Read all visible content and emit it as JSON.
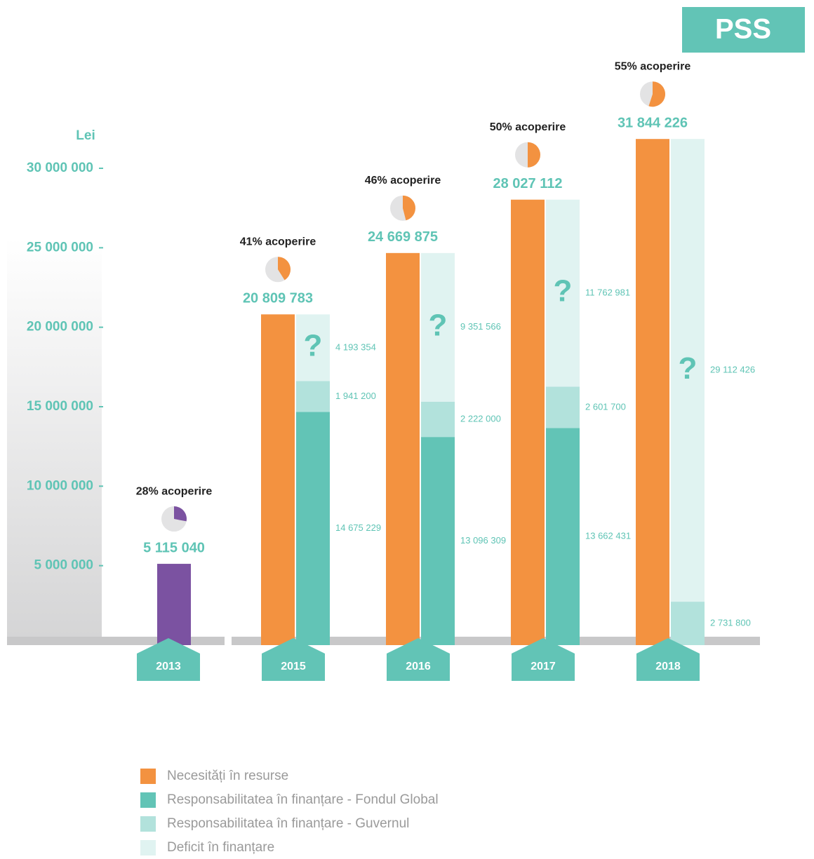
{
  "chart_data": {
    "type": "bar",
    "badge": "PSS",
    "y_label": "Lei",
    "categories": [
      "2013",
      "2015",
      "2016",
      "2017",
      "2018"
    ],
    "ylim": [
      0,
      30000000
    ],
    "yticks": [
      {
        "value": 5000000,
        "label": "5 000 000"
      },
      {
        "value": 10000000,
        "label": "10 000 000"
      },
      {
        "value": 15000000,
        "label": "15 000 000"
      },
      {
        "value": 20000000,
        "label": "20 000 000"
      },
      {
        "value": 25000000,
        "label": "25 000 000"
      },
      {
        "value": 30000000,
        "label": "30 000 000"
      }
    ],
    "coverage": [
      28,
      41,
      46,
      50,
      55
    ],
    "coverage_labels": [
      "28% acoperire",
      "41% acoperire",
      "46% acoperire",
      "50% acoperire",
      "55% acoperire"
    ],
    "deficit_mark": "?",
    "point_colors": [
      "#7b52a1",
      "#f39240",
      "#f39240",
      "#f39240",
      "#f39240"
    ],
    "series": [
      {
        "name": "Necesități în resurse",
        "color": "#f39240",
        "values": [
          5115040,
          20809783,
          24669875,
          28027112,
          31844226
        ],
        "value_labels": [
          "5  115 040",
          "20 809 783",
          "24 669 875",
          "28 027 112",
          "31 844 226"
        ]
      },
      {
        "name": "Responsabilitatea în finanțare - Fondul Global",
        "color": "#62c4b6",
        "values": [
          null,
          14675229,
          13096309,
          13662431,
          null
        ],
        "value_labels": [
          null,
          "14 675 229",
          "13 096 309",
          "13 662 431",
          null
        ]
      },
      {
        "name": "Responsabilitatea în finanțare - Guvernul",
        "color": "#b2e2dc",
        "values": [
          null,
          1941200,
          2222000,
          2601700,
          2731800
        ],
        "value_labels": [
          null,
          "1 941 200",
          "2 222 000",
          "2 601 700",
          "2 731 800"
        ]
      },
      {
        "name": "Deficit în finanțare",
        "color": "#e0f3f1",
        "values": [
          null,
          4193354,
          9351566,
          11762981,
          29112426
        ],
        "value_labels": [
          null,
          "4 193 354",
          "9 351 566",
          "11 762 981",
          "29 112 426"
        ]
      }
    ]
  }
}
